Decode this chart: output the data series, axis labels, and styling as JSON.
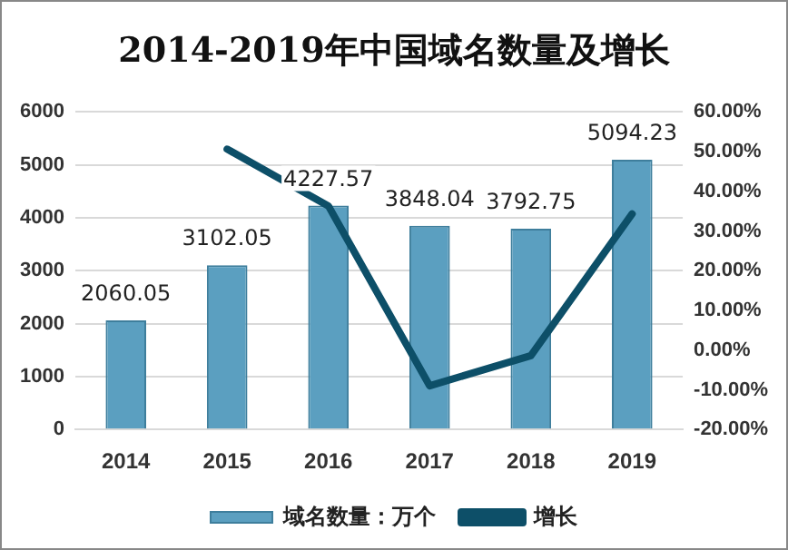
{
  "chart_data": {
    "type": "bar",
    "title": "2014-2019年中国域名数量及增长",
    "categories": [
      "2014",
      "2015",
      "2016",
      "2017",
      "2018",
      "2019"
    ],
    "series": [
      {
        "name": "域名数量：万个",
        "color": "#5b9fc0",
        "values": [
          2060.05,
          3102.05,
          4227.57,
          3848.04,
          3792.75,
          5094.23
        ],
        "value_labels": [
          "2060.05",
          "3102.05",
          "4227.57",
          "3848.04",
          "3792.75",
          "5094.23"
        ]
      },
      {
        "name": "增长",
        "type": "line",
        "axis": "y2",
        "color": "#0d4f68",
        "values": [
          null,
          50.6,
          36.3,
          -9.0,
          -1.4,
          34.3
        ]
      }
    ],
    "ylim": [
      0,
      6000
    ],
    "yticks": [
      0,
      1000,
      2000,
      3000,
      4000,
      5000,
      6000
    ],
    "y2lim": [
      -20,
      60
    ],
    "y2ticks": [
      {
        "value": -20,
        "label": "-20.00%"
      },
      {
        "value": -10,
        "label": "-10.00%"
      },
      {
        "value": 0,
        "label": "0.00%"
      },
      {
        "value": 10,
        "label": "10.00%"
      },
      {
        "value": 20,
        "label": "20.00%"
      },
      {
        "value": 30,
        "label": "30.00%"
      },
      {
        "value": 40,
        "label": "40.00%"
      },
      {
        "value": 50,
        "label": "50.00%"
      },
      {
        "value": 60,
        "label": "60.00%"
      }
    ],
    "grid": "y",
    "legend": "bottom",
    "marker": "none",
    "line_style": "solid"
  }
}
